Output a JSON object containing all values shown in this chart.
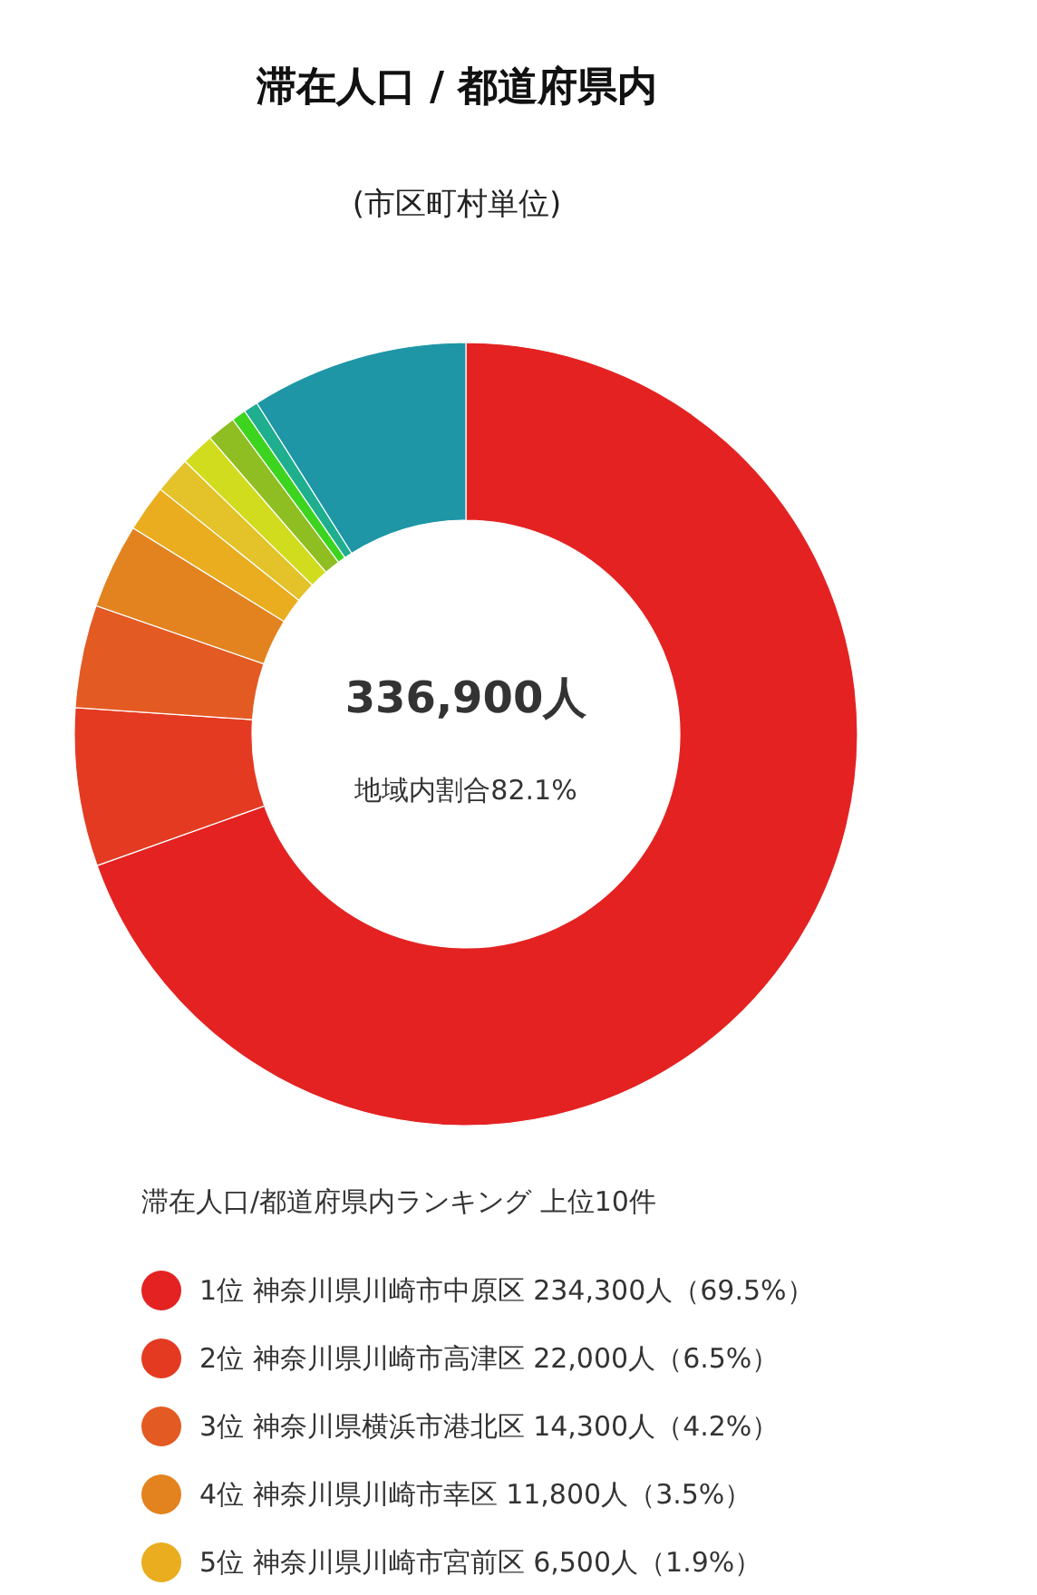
{
  "chart_data": {
    "type": "donut",
    "title": "滞在人口 / 都道府県内",
    "subtitle": "(市区町村単位)",
    "legend_title": "滞在人口/都道府県内ランキング 上位10件",
    "categories": [
      "1位 神奈川県川崎市中原区",
      "2位 神奈川県川崎市高津区",
      "3位 神奈川県横浜市港北区",
      "4位 神奈川県川崎市幸区",
      "5位 神奈川県川崎市宮前区",
      null,
      null,
      null,
      null,
      null,
      null
    ],
    "values": [
      234300,
      22000,
      14300,
      11800,
      6500,
      5100,
      4700,
      4000,
      2000,
      2000,
      30200
    ],
    "value_labels": [
      "234,300人（69.5%）",
      "22,000人（6.5%）",
      "14,300人（4.2%）",
      "11,800人（3.5%）",
      "6,500人（1.9%）",
      null,
      null,
      null,
      null,
      null,
      null
    ],
    "colors": [
      "#e42222",
      "#e43a22",
      "#e35a22",
      "#e3831f",
      "#e9ad1f",
      "#e3c22a",
      "#d2dc1f",
      "#8fbe22",
      "#3dd41f",
      "#1fae8e",
      "#1e96a6"
    ],
    "annotations": [
      "336,900人",
      "地域内割合82.1%"
    ],
    "legend": "bottom"
  }
}
